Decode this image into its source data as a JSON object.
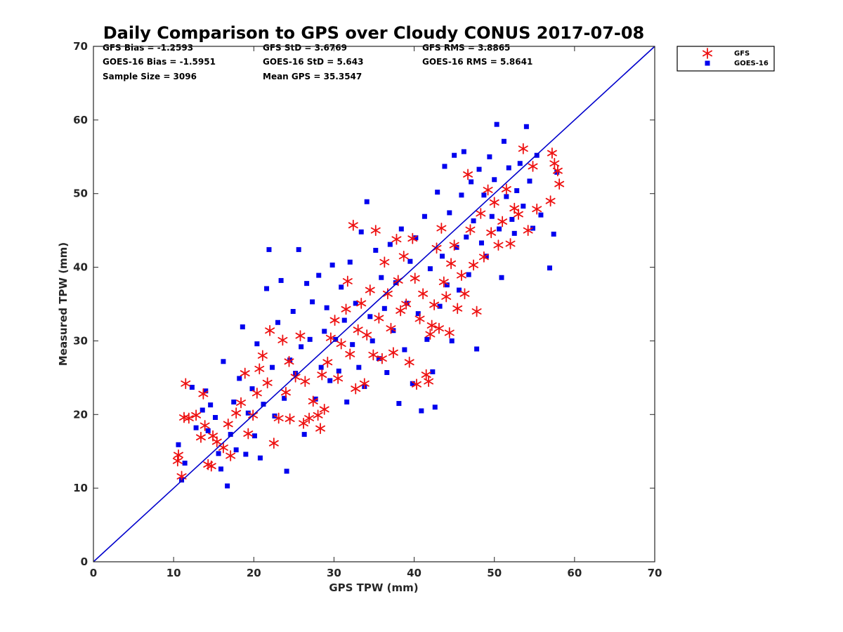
{
  "chart_data": {
    "type": "scatter",
    "title": "Daily Comparison to GPS over Cloudy CONUS 2017-07-08",
    "xlabel": "GPS TPW (mm)",
    "ylabel": "Measured TPW (mm)",
    "xlim": [
      0,
      70
    ],
    "ylim": [
      0,
      70
    ],
    "xticks": [
      0,
      10,
      20,
      30,
      40,
      50,
      60,
      70
    ],
    "yticks": [
      0,
      10,
      20,
      30,
      40,
      50,
      60,
      70
    ],
    "grid": false,
    "legend_position": "outside-top-right",
    "stats": [
      [
        "GFS Bias = -1.2593",
        "GFS StD = 3.6769",
        "GFS RMS = 3.8865"
      ],
      [
        "GOES-16 Bias = -1.5951",
        "GOES-16 StD = 5.643",
        "GOES-16 RMS = 5.8641"
      ],
      [
        "Sample Size = 3096",
        "Mean GPS = 35.3547",
        ""
      ]
    ],
    "reference_line": {
      "x": [
        0,
        70
      ],
      "y": [
        0,
        70
      ],
      "color": "#0000cc"
    },
    "series": [
      {
        "name": "GFS",
        "marker": "asterisk",
        "color": "#ee1111",
        "points": [
          [
            10.5,
            13.7
          ],
          [
            10.6,
            14.5
          ],
          [
            11.0,
            11.6
          ],
          [
            11.3,
            19.6
          ],
          [
            11.5,
            24.2
          ],
          [
            11.9,
            19.5
          ],
          [
            12.8,
            19.9
          ],
          [
            13.4,
            16.9
          ],
          [
            13.7,
            22.8
          ],
          [
            13.9,
            18.5
          ],
          [
            14.3,
            13.2
          ],
          [
            14.7,
            13.0
          ],
          [
            14.9,
            17.1
          ],
          [
            15.4,
            16.3
          ],
          [
            16.2,
            15.5
          ],
          [
            16.8,
            18.7
          ],
          [
            17.1,
            14.4
          ],
          [
            17.8,
            20.2
          ],
          [
            18.4,
            21.6
          ],
          [
            18.9,
            25.6
          ],
          [
            19.3,
            17.4
          ],
          [
            19.9,
            19.9
          ],
          [
            20.4,
            22.9
          ],
          [
            20.7,
            26.2
          ],
          [
            21.1,
            28.0
          ],
          [
            21.7,
            24.3
          ],
          [
            22.0,
            31.4
          ],
          [
            22.5,
            16.1
          ],
          [
            23.1,
            19.5
          ],
          [
            23.6,
            30.1
          ],
          [
            24.0,
            23.0
          ],
          [
            24.4,
            27.2
          ],
          [
            24.5,
            19.4
          ],
          [
            25.2,
            25.1
          ],
          [
            25.8,
            30.7
          ],
          [
            26.2,
            18.8
          ],
          [
            26.4,
            24.5
          ],
          [
            26.9,
            19.5
          ],
          [
            27.4,
            21.8
          ],
          [
            28.0,
            19.9
          ],
          [
            28.3,
            18.1
          ],
          [
            28.5,
            25.4
          ],
          [
            28.8,
            20.7
          ],
          [
            29.2,
            27.1
          ],
          [
            29.6,
            30.4
          ],
          [
            30.1,
            32.8
          ],
          [
            30.5,
            24.9
          ],
          [
            30.9,
            29.6
          ],
          [
            31.5,
            34.3
          ],
          [
            31.7,
            38.1
          ],
          [
            32.0,
            28.2
          ],
          [
            32.4,
            45.7
          ],
          [
            32.7,
            23.5
          ],
          [
            33.0,
            31.5
          ],
          [
            33.4,
            35.1
          ],
          [
            33.8,
            24.2
          ],
          [
            34.1,
            30.8
          ],
          [
            34.5,
            36.9
          ],
          [
            34.9,
            28.1
          ],
          [
            35.2,
            45.0
          ],
          [
            35.6,
            33.1
          ],
          [
            36.0,
            27.6
          ],
          [
            36.3,
            40.7
          ],
          [
            36.7,
            36.4
          ],
          [
            37.1,
            31.7
          ],
          [
            37.4,
            28.4
          ],
          [
            37.8,
            43.8
          ],
          [
            38.0,
            38.2
          ],
          [
            38.3,
            34.1
          ],
          [
            38.7,
            41.5
          ],
          [
            39.0,
            35.0
          ],
          [
            39.4,
            27.1
          ],
          [
            39.8,
            43.9
          ],
          [
            40.1,
            38.5
          ],
          [
            40.3,
            24.1
          ],
          [
            40.7,
            33.0
          ],
          [
            41.1,
            36.4
          ],
          [
            41.5,
            25.4
          ],
          [
            41.8,
            24.5
          ],
          [
            42.0,
            30.9
          ],
          [
            42.2,
            32.1
          ],
          [
            42.5,
            34.9
          ],
          [
            42.8,
            42.6
          ],
          [
            43.1,
            31.7
          ],
          [
            43.4,
            45.3
          ],
          [
            43.7,
            38.0
          ],
          [
            44.0,
            36.0
          ],
          [
            44.4,
            31.1
          ],
          [
            44.6,
            40.5
          ],
          [
            45.0,
            43.0
          ],
          [
            45.4,
            34.4
          ],
          [
            45.9,
            38.9
          ],
          [
            46.3,
            36.4
          ],
          [
            46.7,
            52.6
          ],
          [
            47.0,
            45.1
          ],
          [
            47.4,
            40.3
          ],
          [
            47.8,
            34.0
          ],
          [
            48.3,
            47.3
          ],
          [
            48.7,
            41.4
          ],
          [
            49.2,
            50.5
          ],
          [
            49.6,
            44.7
          ],
          [
            50.0,
            48.8
          ],
          [
            50.5,
            43.0
          ],
          [
            51.0,
            46.2
          ],
          [
            51.5,
            50.6
          ],
          [
            52.0,
            43.2
          ],
          [
            52.5,
            48.0
          ],
          [
            53.0,
            47.2
          ],
          [
            53.6,
            56.1
          ],
          [
            54.2,
            45.0
          ],
          [
            54.8,
            53.7
          ],
          [
            55.3,
            47.9
          ],
          [
            57.0,
            49.0
          ],
          [
            57.2,
            55.5
          ],
          [
            57.5,
            54.1
          ],
          [
            57.9,
            53.1
          ],
          [
            58.1,
            51.3
          ]
        ]
      },
      {
        "name": "GOES-16",
        "marker": "square",
        "color": "#0000ee",
        "points": [
          [
            10.6,
            15.9
          ],
          [
            11.0,
            11.1
          ],
          [
            11.4,
            13.4
          ],
          [
            12.3,
            23.7
          ],
          [
            12.8,
            18.2
          ],
          [
            13.6,
            20.6
          ],
          [
            14.0,
            23.2
          ],
          [
            14.3,
            17.8
          ],
          [
            14.6,
            21.3
          ],
          [
            15.2,
            19.6
          ],
          [
            15.6,
            14.7
          ],
          [
            15.9,
            12.6
          ],
          [
            16.2,
            27.2
          ],
          [
            16.7,
            10.3
          ],
          [
            17.1,
            17.3
          ],
          [
            17.5,
            21.7
          ],
          [
            17.8,
            15.2
          ],
          [
            18.2,
            24.9
          ],
          [
            18.6,
            31.9
          ],
          [
            19.0,
            14.6
          ],
          [
            19.3,
            20.2
          ],
          [
            19.8,
            23.5
          ],
          [
            20.1,
            17.1
          ],
          [
            20.4,
            29.6
          ],
          [
            20.8,
            14.1
          ],
          [
            21.2,
            21.4
          ],
          [
            21.6,
            37.1
          ],
          [
            21.9,
            42.4
          ],
          [
            22.3,
            26.4
          ],
          [
            22.6,
            19.8
          ],
          [
            23.0,
            32.5
          ],
          [
            23.4,
            38.2
          ],
          [
            23.8,
            22.2
          ],
          [
            24.1,
            12.3
          ],
          [
            24.5,
            27.4
          ],
          [
            24.9,
            34.0
          ],
          [
            25.2,
            25.6
          ],
          [
            25.6,
            42.4
          ],
          [
            25.9,
            29.2
          ],
          [
            26.3,
            17.3
          ],
          [
            26.6,
            37.8
          ],
          [
            27.0,
            30.2
          ],
          [
            27.3,
            35.3
          ],
          [
            27.7,
            22.1
          ],
          [
            28.1,
            38.9
          ],
          [
            28.4,
            26.4
          ],
          [
            28.8,
            31.3
          ],
          [
            29.1,
            34.5
          ],
          [
            29.5,
            24.6
          ],
          [
            29.8,
            40.3
          ],
          [
            30.2,
            30.2
          ],
          [
            30.6,
            25.9
          ],
          [
            30.9,
            37.3
          ],
          [
            31.3,
            32.8
          ],
          [
            31.6,
            21.7
          ],
          [
            32.0,
            40.7
          ],
          [
            32.3,
            29.5
          ],
          [
            32.7,
            35.1
          ],
          [
            33.1,
            26.4
          ],
          [
            33.4,
            44.8
          ],
          [
            33.8,
            23.8
          ],
          [
            34.1,
            48.9
          ],
          [
            34.5,
            33.3
          ],
          [
            34.8,
            30.0
          ],
          [
            35.2,
            42.3
          ],
          [
            35.6,
            27.6
          ],
          [
            35.9,
            38.6
          ],
          [
            36.3,
            34.4
          ],
          [
            36.6,
            25.7
          ],
          [
            37.0,
            43.1
          ],
          [
            37.4,
            31.4
          ],
          [
            37.7,
            37.9
          ],
          [
            38.1,
            21.5
          ],
          [
            38.4,
            45.2
          ],
          [
            38.8,
            28.8
          ],
          [
            39.1,
            35.1
          ],
          [
            39.5,
            40.8
          ],
          [
            39.8,
            24.2
          ],
          [
            40.2,
            44.0
          ],
          [
            40.5,
            33.7
          ],
          [
            40.9,
            20.5
          ],
          [
            41.3,
            46.9
          ],
          [
            41.6,
            30.2
          ],
          [
            42.0,
            39.8
          ],
          [
            42.3,
            25.8
          ],
          [
            42.6,
            21.0
          ],
          [
            42.9,
            50.2
          ],
          [
            43.2,
            34.7
          ],
          [
            43.5,
            41.5
          ],
          [
            43.8,
            53.7
          ],
          [
            44.1,
            37.6
          ],
          [
            44.4,
            47.4
          ],
          [
            44.7,
            30.0
          ],
          [
            45.0,
            55.2
          ],
          [
            45.3,
            42.7
          ],
          [
            45.6,
            36.9
          ],
          [
            45.9,
            49.8
          ],
          [
            46.2,
            55.7
          ],
          [
            46.5,
            44.1
          ],
          [
            46.8,
            39.0
          ],
          [
            47.1,
            51.6
          ],
          [
            47.4,
            46.3
          ],
          [
            47.8,
            28.9
          ],
          [
            48.1,
            53.3
          ],
          [
            48.4,
            43.3
          ],
          [
            48.7,
            49.8
          ],
          [
            49.0,
            41.5
          ],
          [
            49.4,
            55.0
          ],
          [
            49.7,
            46.9
          ],
          [
            50.0,
            51.9
          ],
          [
            50.3,
            59.4
          ],
          [
            50.6,
            45.2
          ],
          [
            50.9,
            38.6
          ],
          [
            51.2,
            57.1
          ],
          [
            51.5,
            49.6
          ],
          [
            51.8,
            53.5
          ],
          [
            52.2,
            46.5
          ],
          [
            52.5,
            44.6
          ],
          [
            52.8,
            50.4
          ],
          [
            53.2,
            54.1
          ],
          [
            53.6,
            48.3
          ],
          [
            54.0,
            59.1
          ],
          [
            54.4,
            51.7
          ],
          [
            54.8,
            45.3
          ],
          [
            55.3,
            55.2
          ],
          [
            55.8,
            47.1
          ],
          [
            56.9,
            39.9
          ],
          [
            57.4,
            44.5
          ],
          [
            57.8,
            52.9
          ]
        ]
      }
    ]
  }
}
